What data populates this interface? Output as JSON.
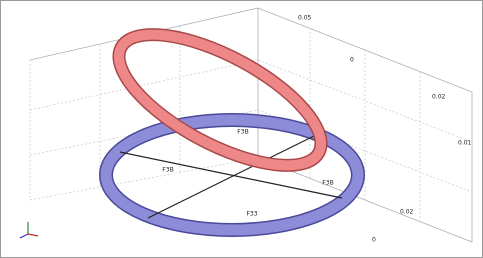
{
  "region_labels": [
    "F3B",
    "F3B",
    "F3B",
    "F33"
  ],
  "axis_ticks": [
    "0.05",
    "0",
    "0.02",
    "0.01",
    "0.02",
    "0"
  ]
}
